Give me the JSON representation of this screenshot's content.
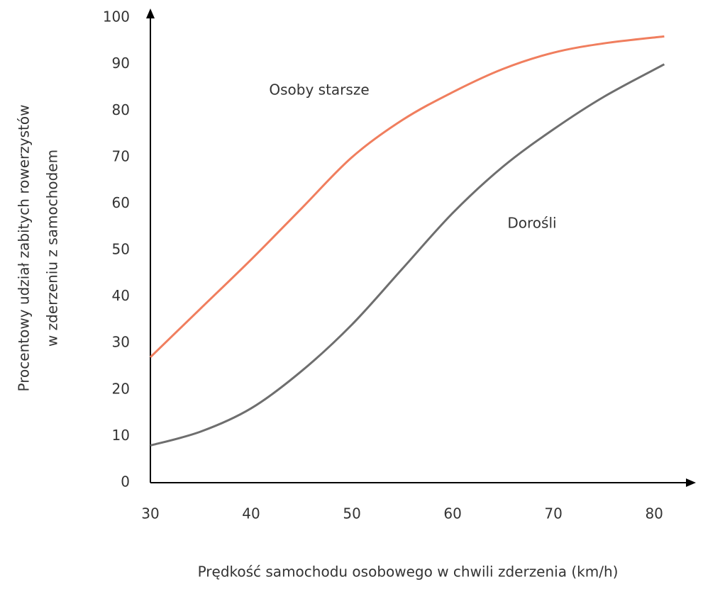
{
  "chart_data": {
    "type": "line",
    "x_label": "Prędkość samochodu osobowego w chwili zderzenia (km/h)",
    "y_label": [
      "Procentowy udział zabitych rowerzystów",
      "w zderzeniu z samochodem"
    ],
    "x": [
      30,
      35,
      40,
      45,
      50,
      55,
      60,
      65,
      70,
      75,
      81
    ],
    "series": [
      {
        "name": "Osoby starsze",
        "color": "#f07e5e",
        "values": [
          27,
          37.5,
          48,
          59,
          70,
          78,
          84,
          89,
          92.5,
          94.5,
          96
        ]
      },
      {
        "name": "Dorośli",
        "color": "#6e6e6e",
        "values": [
          8,
          11,
          16,
          24,
          34,
          46,
          58,
          68,
          76,
          83,
          90
        ]
      }
    ],
    "xlim": [
      30,
      84
    ],
    "ylim": [
      0,
      102
    ],
    "xticks": [
      30,
      40,
      50,
      60,
      70,
      80
    ],
    "yticks": [
      0,
      10,
      20,
      30,
      40,
      50,
      60,
      70,
      80,
      90,
      100
    ]
  }
}
